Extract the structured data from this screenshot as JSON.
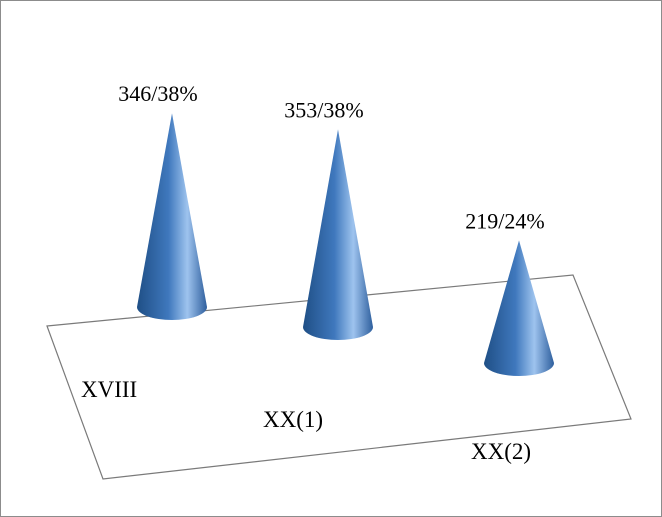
{
  "chart_data": {
    "type": "bar",
    "style": "3d-cone",
    "categories": [
      "XVIII",
      "XX(1)",
      "XX(2)"
    ],
    "values": [
      346,
      353,
      219
    ],
    "percentages": [
      "38%",
      "38%",
      "24%"
    ],
    "data_labels": [
      "346/38%",
      "353/38%",
      "219/24%"
    ],
    "title": "",
    "xlabel": "",
    "ylabel": "",
    "ylim": [
      0,
      400
    ],
    "grid": false,
    "legend": "none",
    "colors": {
      "cone_dark": "#1f4f86",
      "cone_mid": "#3f78bd",
      "cone_light": "#9ec3ee",
      "floor_stroke": "#7a7a7a",
      "frame_stroke": "#8c8c8c"
    }
  }
}
